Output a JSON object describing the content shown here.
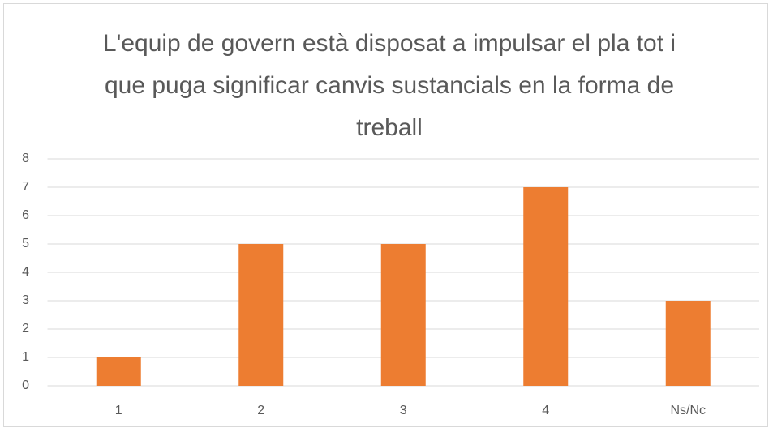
{
  "chart_data": {
    "type": "bar",
    "title": "L'equip de govern està disposat a impulsar el pla tot i que puga significar canvis sustancials en la forma de treball",
    "categories": [
      "1",
      "2",
      "3",
      "4",
      "Ns/Nc"
    ],
    "values": [
      1,
      5,
      5,
      7,
      3
    ],
    "color": "#ed7d31",
    "ylim": [
      0,
      8
    ],
    "yticks": [
      0,
      1,
      2,
      3,
      4,
      5,
      6,
      7,
      8
    ],
    "grid": true
  }
}
